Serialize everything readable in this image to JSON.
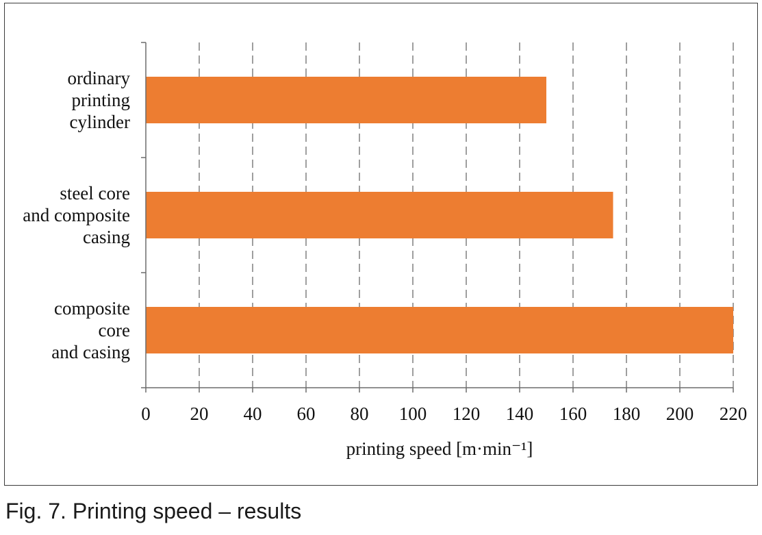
{
  "caption": "Fig. 7. Printing speed – results",
  "chart_data": {
    "type": "bar",
    "orientation": "horizontal",
    "categories": [
      [
        "ordinary",
        "printing",
        "cylinder"
      ],
      [
        "steel core",
        "and composite",
        "casing"
      ],
      [
        "composite",
        "core",
        "and casing"
      ]
    ],
    "values": [
      150,
      175,
      220
    ],
    "xlabel": "printing speed [m·min⁻¹]",
    "xlim": [
      0,
      220
    ],
    "xticks": [
      0,
      20,
      40,
      60,
      80,
      100,
      120,
      140,
      160,
      180,
      200,
      220
    ],
    "grid": "vertical dashed",
    "bar_color": "#ED7D31",
    "legend": "none"
  }
}
